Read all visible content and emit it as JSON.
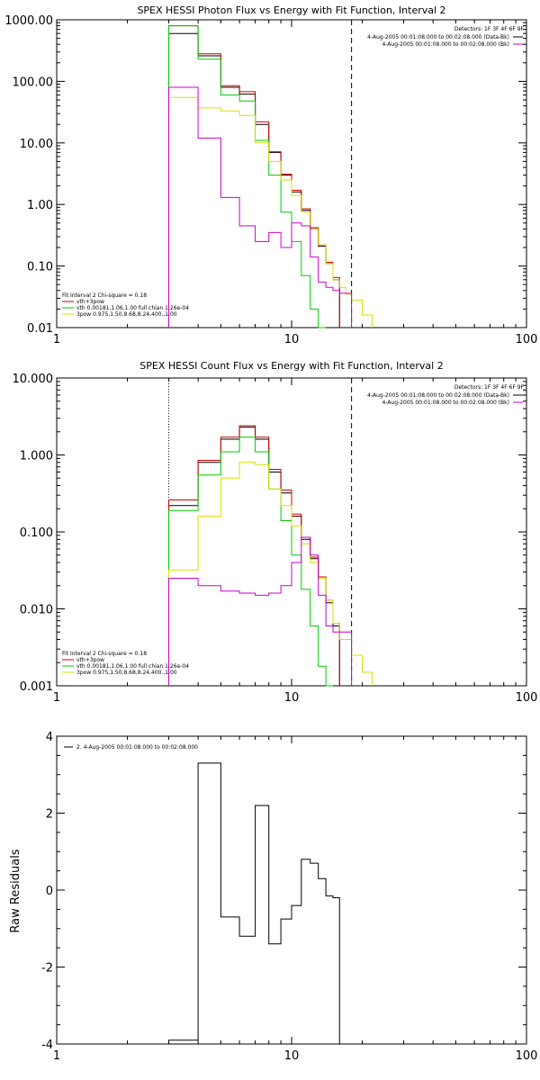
{
  "chart_data": [
    {
      "type": "line",
      "title": "SPEX HESSI Photon Flux vs Energy with Fit Function, Interval 2",
      "xscale": "log",
      "yscale": "log",
      "xlim": [
        1,
        100
      ],
      "ylim": [
        0.01,
        1000
      ],
      "xticks": [
        {
          "v": 1,
          "label": "1"
        },
        {
          "v": 10,
          "label": "10"
        },
        {
          "v": 100,
          "label": "100"
        }
      ],
      "yticks": [
        {
          "v": 0.01,
          "label": "0.01"
        },
        {
          "v": 0.1,
          "label": "0.10"
        },
        {
          "v": 1,
          "label": "1.00"
        },
        {
          "v": 10,
          "label": "10.00"
        },
        {
          "v": 100,
          "label": "100.00"
        },
        {
          "v": 1000,
          "label": "1000.00"
        }
      ],
      "vlines": [
        {
          "x": 3,
          "style": "dotted",
          "color": "#000000"
        },
        {
          "x": 18,
          "style": "dashed",
          "color": "#000000"
        }
      ],
      "legend_top": {
        "placement": "top-right",
        "header": "Detectors: 1F 3F 4F 6F 9F",
        "entries": [
          {
            "label": "4-Aug-2005 00:01:08.000 to 00:02:08.000 (Data-Bk)",
            "color": "#000000"
          },
          {
            "label": "4-Aug-2005 00:01:08.000 to 00:02:08.000 (Bk)",
            "color": "#cc00cc"
          }
        ]
      },
      "legend_bottom": {
        "placement": "bottom-left",
        "header": "Fit Interval 2   Chi-square = 0.18",
        "entries": [
          {
            "label": "vth+3pow",
            "color": "#cc0000"
          },
          {
            "label": "vth 0.00181,1.06,1.00  full chian 1.26e-04",
            "color": "#00cc00"
          },
          {
            "label": "3pow 0.975,1.50,8.68,8.24,400.,1.00",
            "color": "#dddd00"
          }
        ]
      },
      "edges": [
        3,
        4,
        5,
        6,
        7,
        8,
        9,
        10,
        11,
        12,
        13,
        14,
        15,
        16,
        17,
        18,
        20,
        22
      ],
      "series": [
        {
          "color": "#000000",
          "values": [
            600,
            260,
            80,
            62,
            20,
            7,
            3,
            1.6,
            0.8,
            0.4,
            0.21,
            0.11,
            0.06,
            null,
            null,
            null,
            null
          ]
        },
        {
          "color": "#cc0000",
          "values": [
            800,
            280,
            85,
            68,
            22,
            7.2,
            3.1,
            1.7,
            0.85,
            0.42,
            0.22,
            0.115,
            0.065,
            null,
            null,
            null,
            null
          ]
        },
        {
          "color": "#00cc00",
          "values": [
            800,
            230,
            60,
            48,
            11,
            3,
            0.75,
            0.25,
            0.07,
            0.02,
            0.006,
            null,
            null,
            null,
            null,
            null,
            null
          ]
        },
        {
          "color": "#dddd00",
          "values": [
            55,
            37,
            33,
            28,
            10,
            5,
            2.5,
            1.4,
            0.75,
            0.4,
            0.22,
            0.11,
            0.06,
            0.045,
            0.035,
            0.028,
            0.016
          ]
        },
        {
          "color": "#cc00cc",
          "values": [
            80,
            12,
            1.3,
            0.45,
            0.25,
            0.35,
            0.2,
            0.5,
            0.45,
            0.14,
            0.055,
            0.045,
            0.04,
            0.036,
            0.036,
            null,
            null
          ]
        }
      ]
    },
    {
      "type": "line",
      "title": "SPEX HESSI Count Flux vs Energy with Fit Function, Interval 2",
      "xscale": "log",
      "yscale": "log",
      "xlim": [
        1,
        100
      ],
      "ylim": [
        0.001,
        10
      ],
      "xticks": [
        {
          "v": 1,
          "label": "1"
        },
        {
          "v": 10,
          "label": "10"
        },
        {
          "v": 100,
          "label": "100"
        }
      ],
      "yticks": [
        {
          "v": 0.001,
          "label": "0.001"
        },
        {
          "v": 0.01,
          "label": "0.010"
        },
        {
          "v": 0.1,
          "label": "0.100"
        },
        {
          "v": 1,
          "label": "1.000"
        },
        {
          "v": 10,
          "label": "10.000"
        }
      ],
      "vlines": [
        {
          "x": 3,
          "style": "dotted",
          "color": "#000000"
        },
        {
          "x": 18,
          "style": "dashed",
          "color": "#000000"
        }
      ],
      "legend_top": {
        "placement": "top-right",
        "header": "Detectors: 1F 3F 4F 6F 9F",
        "entries": [
          {
            "label": "4-Aug-2005 00:01:08.000 to 00:02:08.000 (Data-Bk)",
            "color": "#000000"
          },
          {
            "label": "4-Aug-2005 00:01:08.000 to 00:02:08.000 (Bk)",
            "color": "#cc00cc"
          }
        ]
      },
      "legend_bottom": {
        "placement": "bottom-left",
        "header": "Fit Interval 2   Chi-square = 0.18",
        "entries": [
          {
            "label": "vth+3pow",
            "color": "#cc0000"
          },
          {
            "label": "vth 0.00181,1.06,1.00  full chian 1.26e-04",
            "color": "#00cc00"
          },
          {
            "label": "3pow 0.975,1.50,8.68,8.24,400.,1.00",
            "color": "#dddd00"
          }
        ]
      },
      "edges": [
        3,
        4,
        5,
        6,
        7,
        8,
        9,
        10,
        11,
        12,
        13,
        14,
        15,
        16,
        17,
        18,
        20,
        22,
        25
      ],
      "series": [
        {
          "color": "#000000",
          "values": [
            0.22,
            0.8,
            1.6,
            2.3,
            1.6,
            0.6,
            0.32,
            0.16,
            0.08,
            0.045,
            0.025,
            0.012,
            0.006,
            null,
            null,
            null,
            null,
            null
          ]
        },
        {
          "color": "#cc0000",
          "values": [
            0.26,
            0.85,
            1.7,
            2.4,
            1.7,
            0.65,
            0.35,
            0.17,
            0.085,
            0.047,
            0.026,
            0.013,
            0.0065,
            null,
            null,
            null,
            null,
            null
          ]
        },
        {
          "color": "#00cc00",
          "values": [
            0.19,
            0.55,
            1.1,
            1.7,
            1.1,
            0.36,
            0.14,
            0.05,
            0.018,
            0.006,
            0.0018,
            0.0005,
            null,
            null,
            null,
            null,
            null,
            null
          ]
        },
        {
          "color": "#dddd00",
          "values": [
            0.032,
            0.16,
            0.5,
            0.8,
            0.75,
            0.36,
            0.22,
            0.12,
            0.07,
            0.04,
            0.025,
            0.013,
            0.0065,
            0.004,
            0.004,
            0.0025,
            0.0015,
            null
          ]
        },
        {
          "color": "#cc00cc",
          "values": [
            0.025,
            0.02,
            0.017,
            0.016,
            0.015,
            0.016,
            0.02,
            0.04,
            0.085,
            0.05,
            0.015,
            0.006,
            0.005,
            0.005,
            0.005,
            null,
            null,
            null
          ]
        }
      ]
    },
    {
      "type": "line",
      "title": "",
      "xscale": "log",
      "yscale": "linear",
      "xlim": [
        1,
        100
      ],
      "ylim": [
        -4,
        4
      ],
      "ylabel": "Raw Residuals",
      "xticks": [
        {
          "v": 1,
          "label": "1"
        },
        {
          "v": 10,
          "label": "10"
        },
        {
          "v": 100,
          "label": "100"
        }
      ],
      "yticks": [
        {
          "v": -4,
          "label": "-4"
        },
        {
          "v": -2,
          "label": "-2"
        },
        {
          "v": 0,
          "label": "0"
        },
        {
          "v": 2,
          "label": "2"
        },
        {
          "v": 4,
          "label": "4"
        }
      ],
      "legend_top": {
        "placement": "top-left",
        "header": "",
        "entries": [
          {
            "label": "2. 4-Aug-2005 00:01:08.000 to 00:02:08.000",
            "color": "#000000"
          }
        ]
      },
      "edges": [
        3,
        4,
        5,
        6,
        7,
        8,
        9,
        10,
        11,
        12,
        13,
        14,
        15,
        16,
        17,
        18
      ],
      "series": [
        {
          "color": "#000000",
          "values": [
            -3.9,
            3.3,
            -0.7,
            -1.2,
            2.2,
            -1.4,
            -0.75,
            -0.4,
            0.8,
            0.7,
            0.3,
            -0.15,
            -0.2,
            null,
            null
          ]
        }
      ]
    }
  ]
}
